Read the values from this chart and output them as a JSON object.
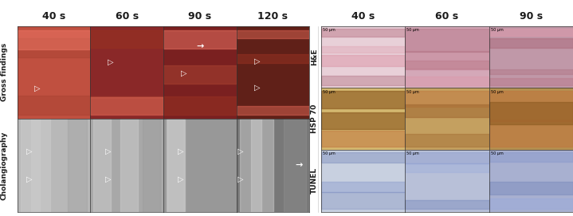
{
  "left_col_labels": [
    "40 s",
    "60 s",
    "90 s",
    "120 s"
  ],
  "right_col_labels": [
    "40 s",
    "60 s",
    "90 s"
  ],
  "left_row_labels": [
    "Gross findings",
    "Cholangiography"
  ],
  "right_row_labels": [
    "H&E",
    "HSP 70",
    "TUNEL"
  ],
  "left_row_colors": [
    [
      "#c0504d",
      "#8B1a1a",
      "#7B2a2a",
      "#6B1a1a"
    ],
    [
      "#b0b0b0",
      "#a8a8a8",
      "#989898",
      "#888888"
    ]
  ],
  "right_row_colors": [
    [
      "#d4a0b0",
      "#c08090",
      "#b07090"
    ],
    [
      "#c8a060",
      "#b89050",
      "#a88040"
    ],
    [
      "#c0c8d8",
      "#b0b8d0",
      "#a0a8c8"
    ]
  ],
  "background_color": "#ffffff",
  "label_color": "#1a1a1a",
  "title_fontsize": 9,
  "row_label_fontsize": 7,
  "scalebar_label": "50 μm"
}
